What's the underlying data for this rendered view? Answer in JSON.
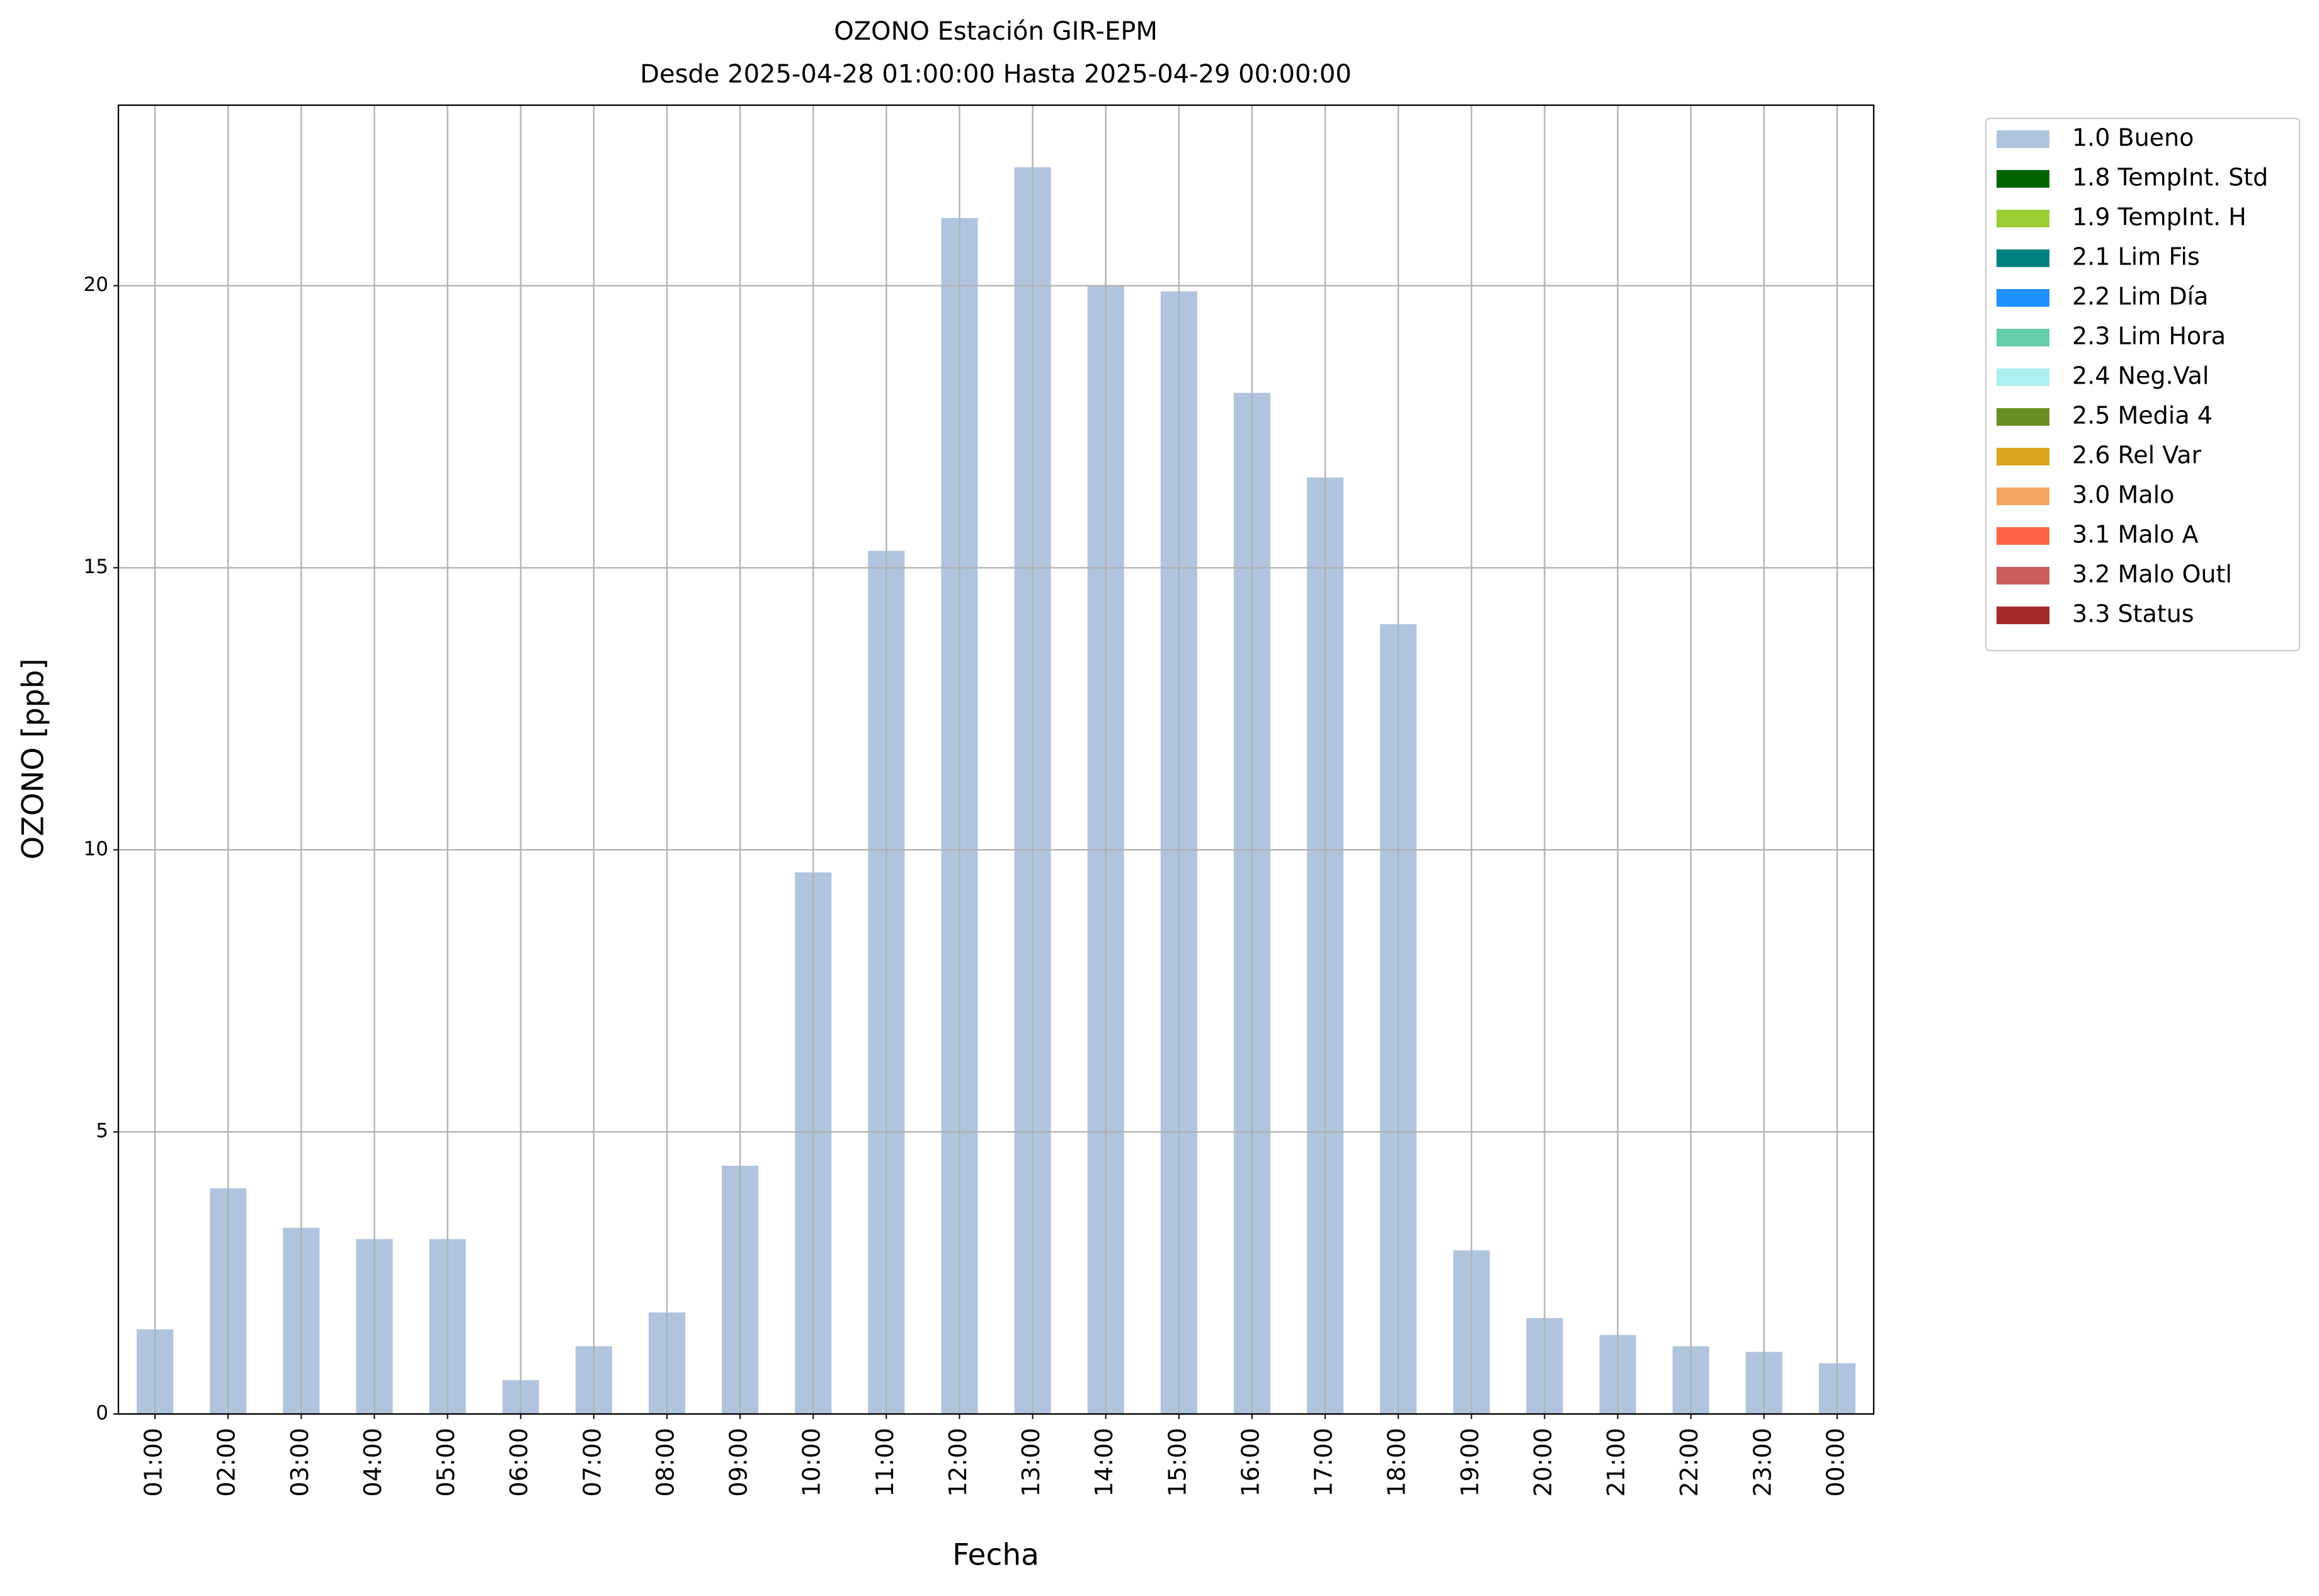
{
  "chart_data": {
    "type": "bar",
    "title": "OZONO Estación GIR-EPM",
    "subtitle": "Desde 2025-04-28 01:00:00 Hasta 2025-04-29 00:00:00",
    "x_label": "Fecha",
    "y_label": "OZONO [ppb]",
    "categories": [
      "01:00",
      "02:00",
      "03:00",
      "04:00",
      "05:00",
      "06:00",
      "07:00",
      "08:00",
      "09:00",
      "10:00",
      "11:00",
      "12:00",
      "13:00",
      "14:00",
      "15:00",
      "16:00",
      "17:00",
      "18:00",
      "19:00",
      "20:00",
      "21:00",
      "22:00",
      "23:00",
      "00:00"
    ],
    "series": [
      {
        "name": "1.0 Bueno",
        "color": "#b0c4de",
        "values": [
          1.5,
          4.0,
          3.3,
          3.1,
          3.1,
          0.6,
          1.2,
          1.8,
          4.4,
          9.6,
          15.3,
          21.2,
          22.1,
          20.0,
          19.9,
          18.1,
          16.6,
          14.0,
          2.9,
          1.7,
          1.4,
          1.2,
          1.1,
          0.9
        ]
      }
    ],
    "legend_only": [
      {
        "name": "1.8 TempInt. Std",
        "color": "#006400"
      },
      {
        "name": "1.9 TempInt. H",
        "color": "#9acd32"
      },
      {
        "name": "2.1 Lim Fis",
        "color": "#008080"
      },
      {
        "name": "2.2 Lim Día",
        "color": "#1e90ff"
      },
      {
        "name": "2.3 Lim Hora",
        "color": "#66cdaa"
      },
      {
        "name": "2.4 Neg.Val",
        "color": "#afeeee"
      },
      {
        "name": "2.5 Media 4",
        "color": "#6b8e23"
      },
      {
        "name": "2.6 Rel Var",
        "color": "#daa520"
      },
      {
        "name": "3.0 Malo",
        "color": "#f4a460"
      },
      {
        "name": "3.1 Malo A",
        "color": "#ff6347"
      },
      {
        "name": "3.2 Malo Outl",
        "color": "#cd5c5c"
      },
      {
        "name": "3.3 Status",
        "color": "#a52a2a"
      }
    ],
    "ylim": [
      0,
      23.2
    ],
    "yticks": [
      0,
      5,
      10,
      15,
      20
    ],
    "grid": true,
    "legend_position": "outside-upper-right"
  }
}
